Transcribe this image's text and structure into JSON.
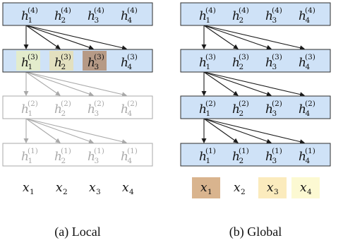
{
  "colors": {
    "row_fill": "#cfe2f7",
    "row_stroke": "#2d2d2d",
    "faded": "#a9a9a9",
    "local_h1_highlight": "#e3eccc",
    "local_h2_highlight": "#e3e0bf",
    "local_h3_highlight": "#b69a86",
    "global_x1_highlight": "#d9b48e",
    "global_x3_highlight": "#fbebbd",
    "global_x4_highlight": "#fcf9d2"
  },
  "panels": [
    {
      "id": "local",
      "caption": "(a) Local",
      "layers": [
        {
          "level": "4",
          "cells": [
            "h",
            "h",
            "h",
            "h"
          ],
          "style": "active"
        },
        {
          "level": "3",
          "cells": [
            "h",
            "h",
            "h",
            "h"
          ],
          "style": "active"
        },
        {
          "level": "2",
          "cells": [
            "h",
            "h",
            "h",
            "h"
          ],
          "style": "faded"
        },
        {
          "level": "1",
          "cells": [
            "h",
            "h",
            "h",
            "h"
          ],
          "style": "faded"
        }
      ],
      "inputs": [
        "x",
        "x",
        "x",
        "x"
      ]
    },
    {
      "id": "global",
      "caption": "(b) Global",
      "layers": [
        {
          "level": "4",
          "cells": [
            "h",
            "h",
            "h",
            "h"
          ],
          "style": "active"
        },
        {
          "level": "3",
          "cells": [
            "h",
            "h",
            "h",
            "h"
          ],
          "style": "active"
        },
        {
          "level": "2",
          "cells": [
            "h",
            "h",
            "h",
            "h"
          ],
          "style": "active"
        },
        {
          "level": "1",
          "cells": [
            "h",
            "h",
            "h",
            "h"
          ],
          "style": "active"
        }
      ],
      "inputs": [
        "x",
        "x",
        "x",
        "x"
      ]
    }
  ]
}
